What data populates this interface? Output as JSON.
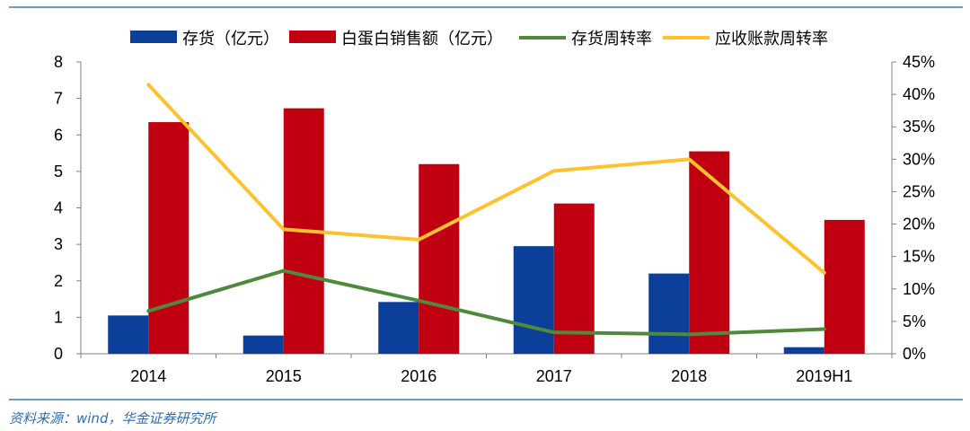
{
  "source_note": "资料来源：wind，华金证券研究所",
  "chart_data": {
    "type": "bar",
    "categories": [
      "2014",
      "2015",
      "2016",
      "2017",
      "2018",
      "2019H1"
    ],
    "series": [
      {
        "name": "存货（亿元）",
        "kind": "bar",
        "axis": "left",
        "color": "#0b3f99",
        "values": [
          1.05,
          0.5,
          1.42,
          2.95,
          2.2,
          0.18
        ]
      },
      {
        "name": "白蛋白销售额（亿元）",
        "kind": "bar",
        "axis": "left",
        "color": "#c00010",
        "values": [
          6.35,
          6.73,
          5.2,
          4.12,
          5.55,
          3.67
        ]
      },
      {
        "name": "存货周转率",
        "kind": "line",
        "axis": "right",
        "color": "#4f8a3c",
        "values": [
          0.066,
          0.128,
          0.082,
          0.033,
          0.03,
          0.038
        ]
      },
      {
        "name": "应收账款周转率",
        "kind": "line",
        "axis": "right",
        "color": "#ffc22e",
        "values": [
          0.415,
          0.192,
          0.176,
          0.282,
          0.3,
          0.125
        ]
      }
    ],
    "left_axis": {
      "min": 0,
      "max": 8,
      "ticks": [
        "0",
        "1",
        "2",
        "3",
        "4",
        "5",
        "6",
        "7",
        "8"
      ]
    },
    "right_axis": {
      "min": 0,
      "max": 0.45,
      "ticks": [
        "0%",
        "5%",
        "10%",
        "15%",
        "20%",
        "25%",
        "30%",
        "35%",
        "40%",
        "45%"
      ]
    },
    "legend_position": "top",
    "grid": false
  }
}
